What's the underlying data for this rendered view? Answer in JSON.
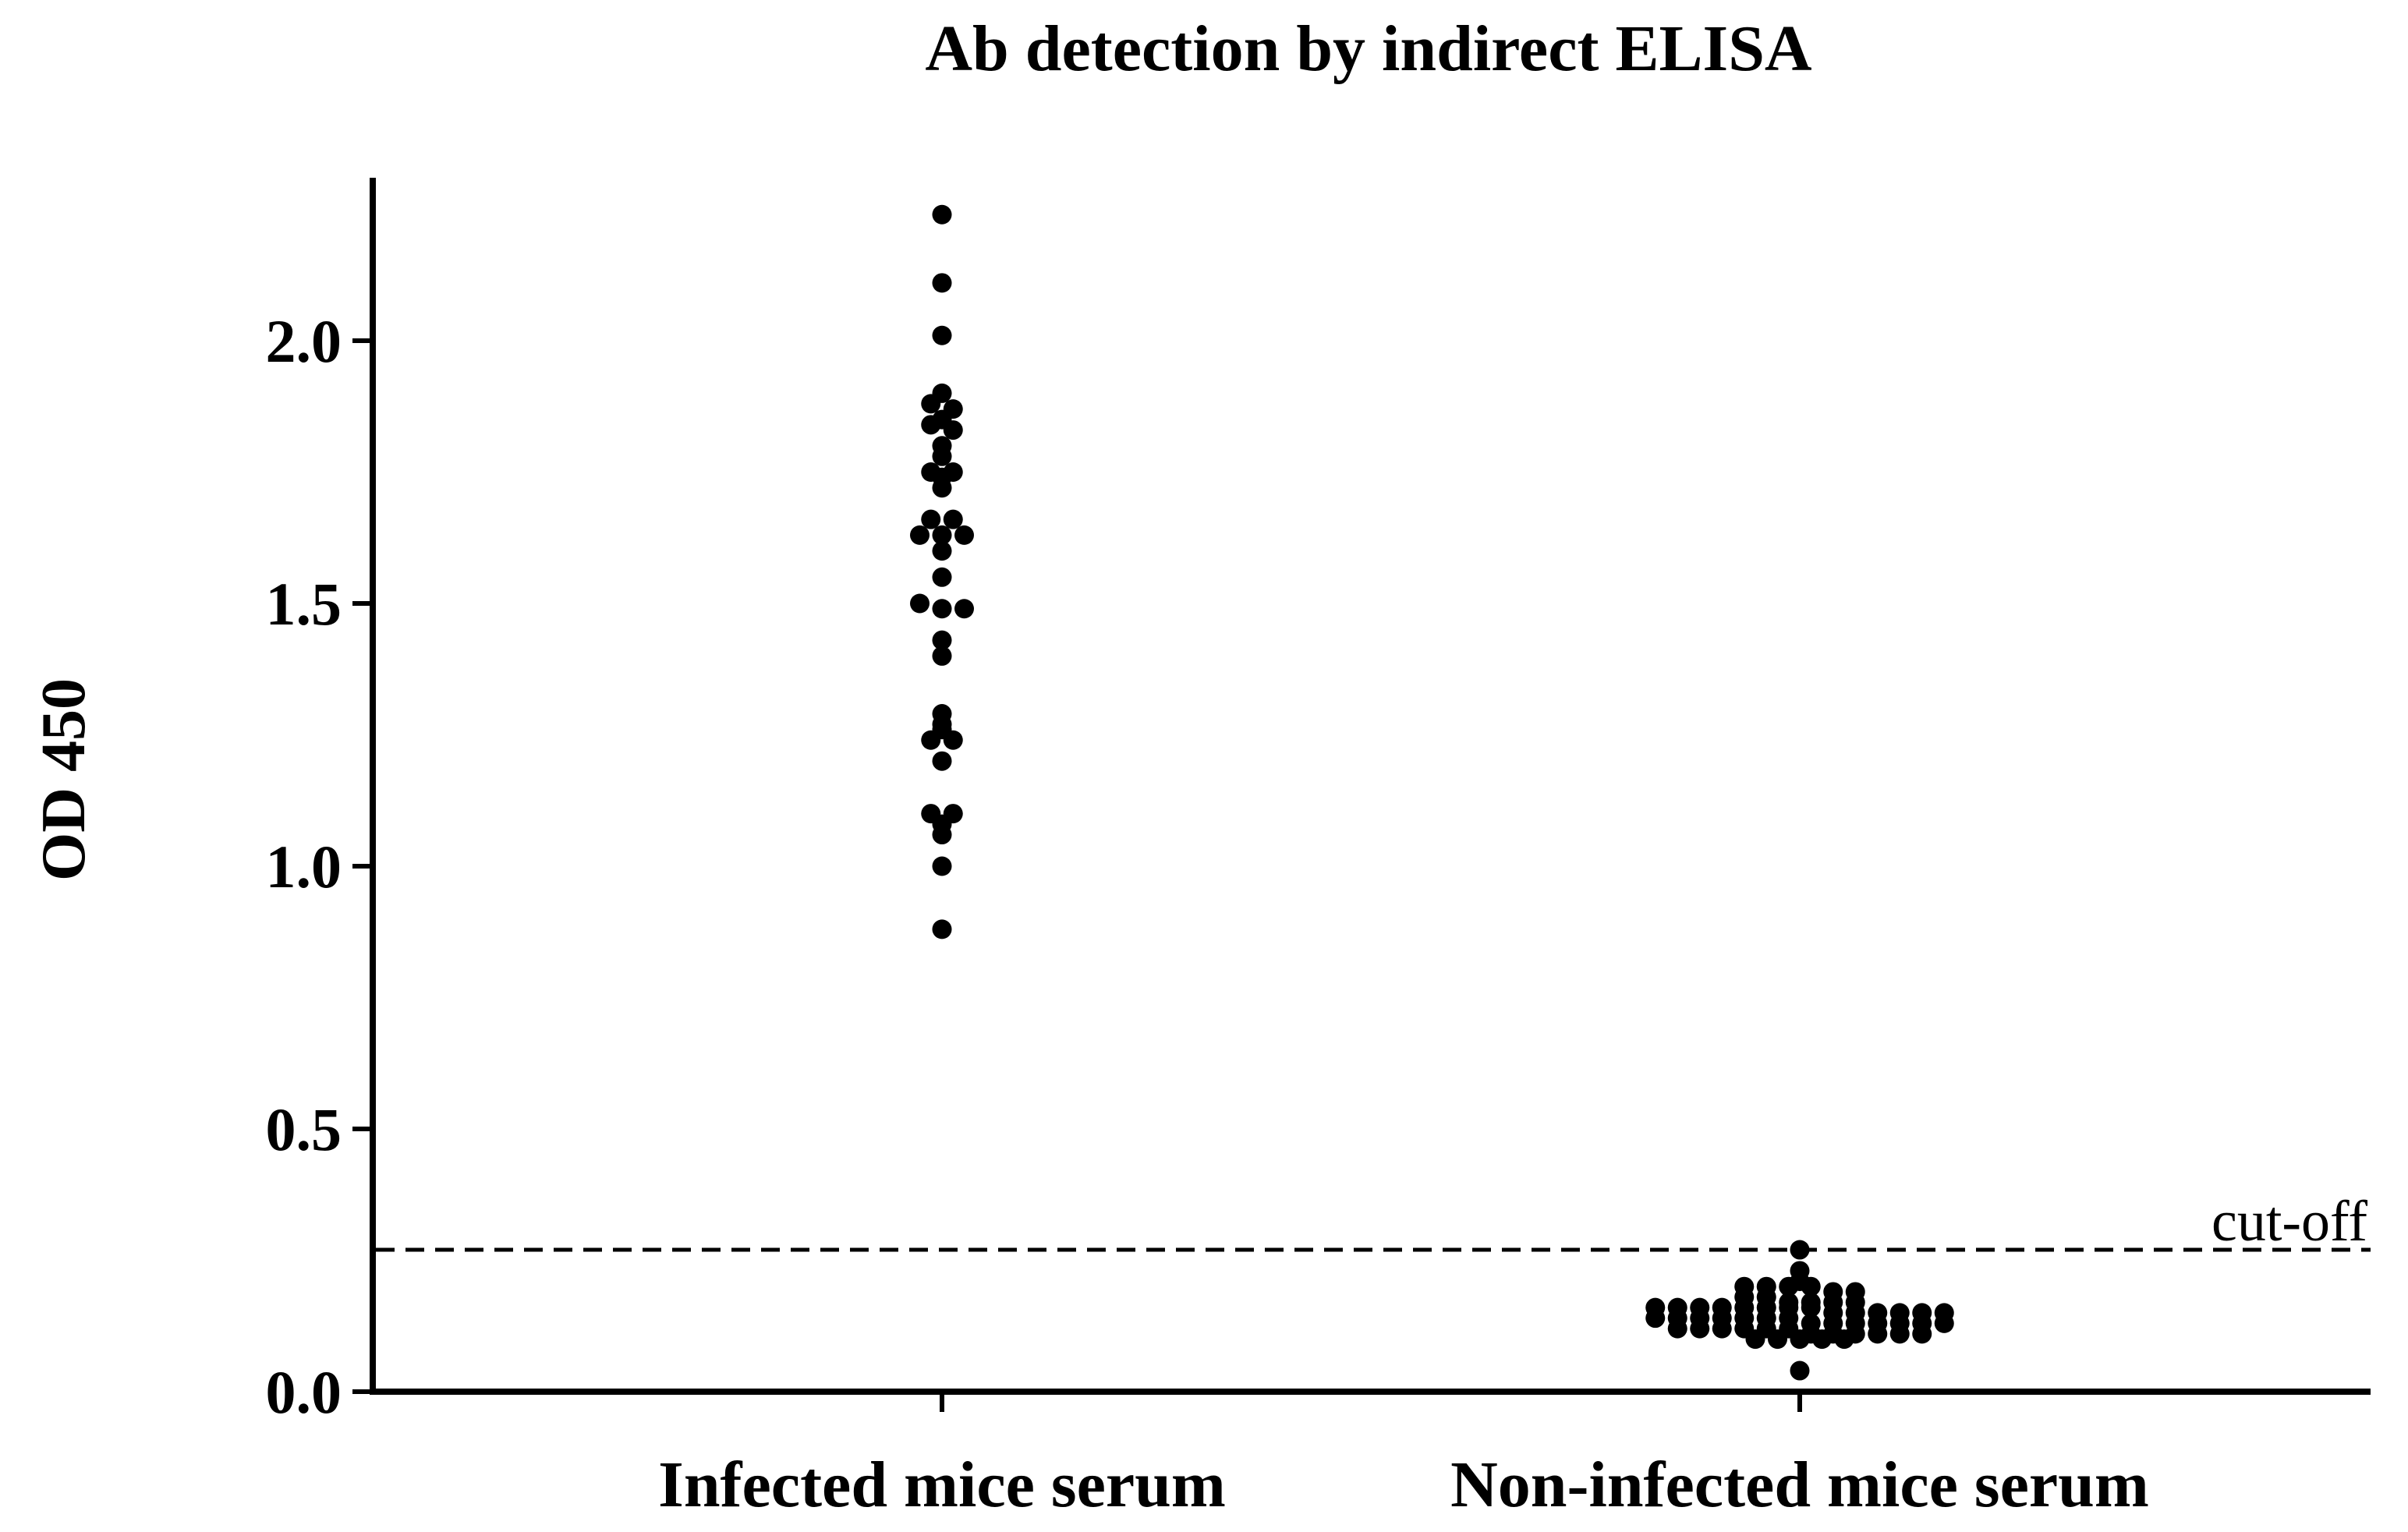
{
  "chart_data": {
    "type": "scatter",
    "title": "Ab detection by indirect ELISA",
    "xlabel": "",
    "ylabel": "OD 450",
    "ylim": [
      0,
      2.3
    ],
    "yticks": [
      "0.0",
      "0.5",
      "1.0",
      "1.5",
      "2.0"
    ],
    "ytick_values": [
      0,
      0.5,
      1.0,
      1.5,
      2.0
    ],
    "categories": [
      "Infected mice serum",
      "Non-infected mice serum"
    ],
    "grid": false,
    "legend": "none",
    "point_color": "#000000",
    "series": [
      {
        "category": "Infected mice serum",
        "values": [
          2.24,
          2.11,
          2.01,
          1.9,
          1.88,
          1.87,
          1.85,
          1.84,
          1.83,
          1.8,
          1.78,
          1.75,
          1.75,
          1.74,
          1.72,
          1.66,
          1.66,
          1.63,
          1.63,
          1.63,
          1.6,
          1.55,
          1.5,
          1.49,
          1.49,
          1.43,
          1.4,
          1.29,
          1.27,
          1.26,
          1.24,
          1.24,
          1.2,
          1.1,
          1.1,
          1.08,
          1.06,
          1.0,
          0.88
        ]
      },
      {
        "category": "Non-infected mice serum",
        "values": [
          0.27,
          0.23,
          0.21,
          0.2,
          0.2,
          0.2,
          0.2,
          0.19,
          0.19,
          0.18,
          0.18,
          0.17,
          0.17,
          0.17,
          0.17,
          0.16,
          0.16,
          0.16,
          0.16,
          0.16,
          0.16,
          0.16,
          0.16,
          0.15,
          0.15,
          0.15,
          0.15,
          0.15,
          0.15,
          0.14,
          0.14,
          0.14,
          0.14,
          0.14,
          0.14,
          0.14,
          0.13,
          0.13,
          0.13,
          0.13,
          0.13,
          0.13,
          0.13,
          0.12,
          0.12,
          0.12,
          0.12,
          0.12,
          0.12,
          0.11,
          0.11,
          0.11,
          0.11,
          0.11,
          0.11,
          0.1,
          0.1,
          0.1,
          0.1,
          0.1,
          0.04
        ]
      }
    ],
    "annotations": [
      {
        "text": "cut-off",
        "y": 0.27,
        "style": "dashed-line"
      }
    ]
  }
}
